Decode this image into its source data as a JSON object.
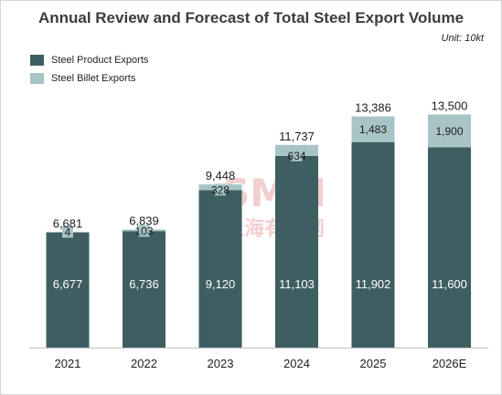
{
  "chart_data": {
    "type": "bar",
    "stacked": true,
    "title": "Annual Review and Forecast of Total Steel Export Volume",
    "unit_note": "Unit: 10kt",
    "categories": [
      "2021",
      "2022",
      "2023",
      "2024",
      "2025",
      "2026E"
    ],
    "series": [
      {
        "name": "Steel Product Exports",
        "values": [
          6677,
          6736,
          9120,
          11103,
          11902,
          11600
        ],
        "color": "#3e5e62"
      },
      {
        "name": "Steel Billet Exports",
        "values": [
          4,
          103,
          328,
          634,
          1483,
          1900
        ],
        "color": "#a9c4c7"
      }
    ],
    "totals": [
      6681,
      6839,
      9448,
      11737,
      13386,
      13500
    ],
    "legend_position": "top-left",
    "grid": false,
    "ylim": [
      0,
      15000
    ]
  },
  "watermark": {
    "text": "SMM",
    "subtext": "上海有色网",
    "color": "#e8a8a8"
  }
}
